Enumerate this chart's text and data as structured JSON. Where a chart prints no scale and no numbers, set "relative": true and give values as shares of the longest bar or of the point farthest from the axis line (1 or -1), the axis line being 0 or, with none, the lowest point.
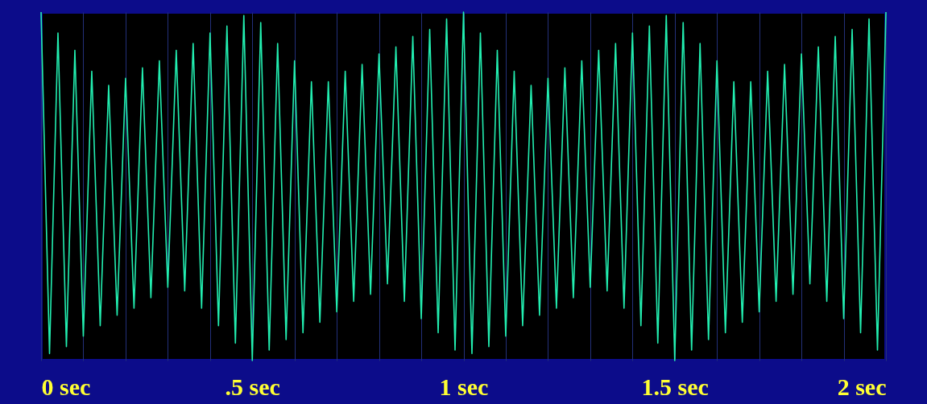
{
  "chart_data": {
    "type": "line",
    "relative": true,
    "grid": "x",
    "xlim": [
      0,
      2
    ],
    "xticks": [
      {
        "value": 0,
        "label": "0 sec"
      },
      {
        "value": 0.1,
        "label": null
      },
      {
        "value": 0.2,
        "label": null
      },
      {
        "value": 0.3,
        "label": null
      },
      {
        "value": 0.4,
        "label": null
      },
      {
        "value": 0.5,
        "label": ".5 sec"
      },
      {
        "value": 0.6,
        "label": null
      },
      {
        "value": 0.7,
        "label": null
      },
      {
        "value": 0.8,
        "label": null
      },
      {
        "value": 0.9,
        "label": null
      },
      {
        "value": 1,
        "label": "1 sec"
      },
      {
        "value": 1.1,
        "label": null
      },
      {
        "value": 1.2,
        "label": null
      },
      {
        "value": 1.3,
        "label": null
      },
      {
        "value": 1.4,
        "label": null
      },
      {
        "value": 1.5,
        "label": "1.5 sec"
      },
      {
        "value": 1.6,
        "label": null
      },
      {
        "value": 1.7,
        "label": null
      },
      {
        "value": 1.8,
        "label": null
      },
      {
        "value": 1.9,
        "label": null
      },
      {
        "value": 2,
        "label": "2 sec"
      }
    ],
    "x": [
      0,
      0.02,
      0.04,
      0.06,
      0.08,
      0.1,
      0.12,
      0.14,
      0.16,
      0.18,
      0.2,
      0.22,
      0.24,
      0.26,
      0.28,
      0.3,
      0.32,
      0.34,
      0.36,
      0.38,
      0.4,
      0.42,
      0.44,
      0.46,
      0.48,
      0.5,
      0.52,
      0.54,
      0.56,
      0.58,
      0.6,
      0.62,
      0.64,
      0.66,
      0.68,
      0.7,
      0.72,
      0.74,
      0.76,
      0.78,
      0.8,
      0.82,
      0.84,
      0.86,
      0.88,
      0.9,
      0.92,
      0.94,
      0.96,
      0.98,
      1,
      1.02,
      1.04,
      1.06,
      1.08,
      1.1,
      1.12,
      1.14,
      1.16,
      1.18,
      1.2,
      1.22,
      1.24,
      1.26,
      1.28,
      1.3,
      1.32,
      1.34,
      1.36,
      1.38,
      1.4,
      1.42,
      1.44,
      1.46,
      1.48,
      1.5,
      1.52,
      1.54,
      1.56,
      1.58,
      1.6,
      1.62,
      1.64,
      1.66,
      1.68,
      1.7,
      1.72,
      1.74,
      1.76,
      1.78,
      1.8,
      1.82,
      1.84,
      1.86,
      1.88,
      1.9,
      1.92,
      1.94,
      1.96,
      1.98,
      2
    ],
    "series": [
      {
        "color": "#22eeb0",
        "values": [
          1,
          0.02,
          0.94,
          0.04,
          0.89,
          0.07,
          0.83,
          0.1,
          0.79,
          0.13,
          0.81,
          0.15,
          0.84,
          0.18,
          0.86,
          0.21,
          0.89,
          0.2,
          0.91,
          0.15,
          0.94,
          0.1,
          0.96,
          0.05,
          0.99,
          0,
          0.97,
          0.03,
          0.91,
          0.06,
          0.86,
          0.08,
          0.8,
          0.11,
          0.8,
          0.14,
          0.83,
          0.17,
          0.85,
          0.19,
          0.88,
          0.22,
          0.9,
          0.17,
          0.93,
          0.12,
          0.95,
          0.08,
          0.98,
          0.03,
          1,
          0.02,
          0.94,
          0.04,
          0.89,
          0.07,
          0.83,
          0.1,
          0.79,
          0.13,
          0.81,
          0.15,
          0.84,
          0.18,
          0.86,
          0.21,
          0.89,
          0.2,
          0.91,
          0.15,
          0.94,
          0.1,
          0.96,
          0.05,
          0.99,
          0,
          0.97,
          0.03,
          0.91,
          0.06,
          0.86,
          0.08,
          0.8,
          0.11,
          0.8,
          0.14,
          0.83,
          0.17,
          0.85,
          0.19,
          0.88,
          0.22,
          0.9,
          0.17,
          0.93,
          0.12,
          0.95,
          0.08,
          0.98,
          0.03,
          1
        ]
      }
    ]
  }
}
